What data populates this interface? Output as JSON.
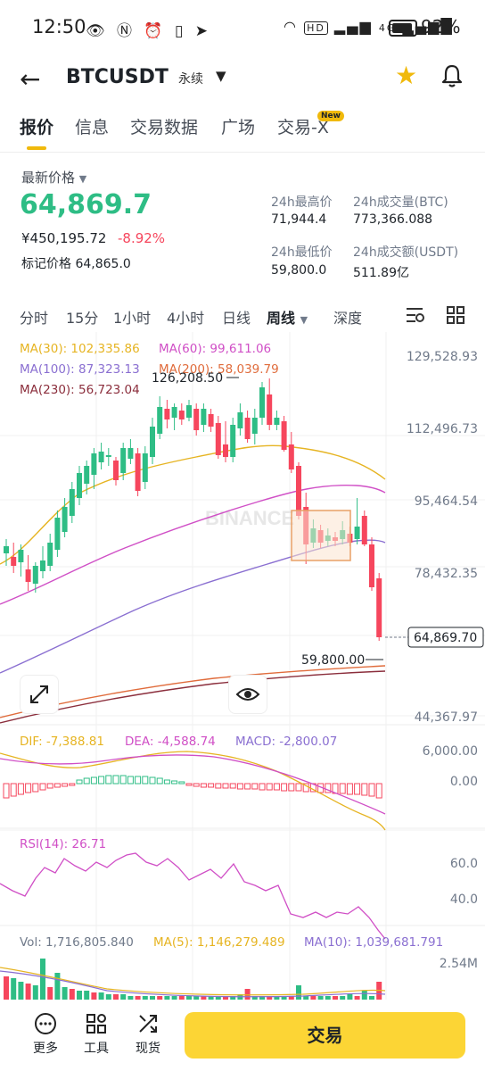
{
  "status_bar": {
    "time": "12:50",
    "battery": "92%",
    "network_hd": "HD",
    "network_4g": "4G"
  },
  "header": {
    "symbol": "BTCUSDT",
    "contract_type": "永续"
  },
  "tabs": [
    {
      "label": "报价",
      "active": true
    },
    {
      "label": "信息"
    },
    {
      "label": "交易数据"
    },
    {
      "label": "广场"
    },
    {
      "label": "交易-X"
    }
  ],
  "tab_badge": "New",
  "price": {
    "latest_label": "最新价格",
    "last_price": "64,869.7",
    "cny_value": "¥450,195.72",
    "change_pct": "-8.92%",
    "mark_label": "标记价格",
    "mark_price": "64,865.0"
  },
  "stats": {
    "high_label": "24h最高价",
    "high_value": "71,944.4",
    "vol_btc_label": "24h成交量(BTC)",
    "vol_btc_value": "773,366.088",
    "low_label": "24h最低价",
    "low_value": "59,800.0",
    "vol_usdt_label": "24h成交额(USDT)",
    "vol_usdt_value": "511.89亿"
  },
  "intervals": [
    {
      "label": "分时"
    },
    {
      "label": "15分"
    },
    {
      "label": "1小时"
    },
    {
      "label": "4小时"
    },
    {
      "label": "日线"
    },
    {
      "label": "周线",
      "active": true
    },
    {
      "label": "深度"
    }
  ],
  "ma_legend": {
    "ma30": "MA(30): 102,335.86",
    "ma60": "MA(60): 99,611.06",
    "ma100": "MA(100): 87,323.13",
    "ma200": "MA(200): 58,039.79",
    "ma230": "MA(230): 56,723.04"
  },
  "chart_data": {
    "type": "candlestick",
    "y_axis_ticks": [
      "129,528.93",
      "112,496.73",
      "95,464.54",
      "78,432.35",
      "44,367.97"
    ],
    "current_price_label": "64,869.70",
    "high_annotation": "126,208.50",
    "low_annotation": "59,800.00",
    "watermark": "BINANCE",
    "colors": {
      "up": "#2ebd85",
      "down": "#f6465d",
      "ma30": "#e6b422",
      "ma60": "#d04fc6",
      "ma100": "#8a6fd1",
      "ma200": "#e06c3c",
      "ma230": "#8b2e3c"
    }
  },
  "macd": {
    "dif": "DIF: -7,388.81",
    "dea": "DEA: -4,588.74",
    "macd": "MACD: -2,800.07",
    "ticks": [
      "6,000.00",
      "0.00"
    ]
  },
  "rsi": {
    "label": "RSI(14): 26.71",
    "ticks": [
      "60.0",
      "40.0"
    ]
  },
  "volume": {
    "vol": "Vol: 1,716,805.840",
    "ma5": "MA(5): 1,146,279.489",
    "ma10": "MA(10): 1,039,681.791",
    "tick": "2.54M"
  },
  "bottom_bar": {
    "more": "更多",
    "tools": "工具",
    "spot": "现货",
    "trade": "交易"
  }
}
